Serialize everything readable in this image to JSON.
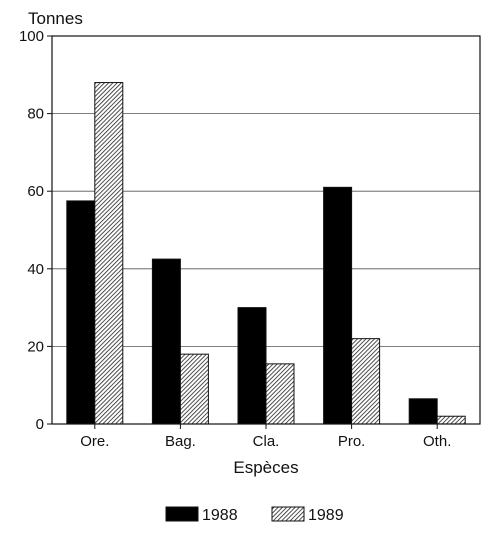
{
  "chart_data": {
    "type": "bar",
    "ylabel": "Tonnes",
    "xlabel": "Espèces",
    "categories": [
      "Ore.",
      "Bag.",
      "Cla.",
      "Pro.",
      "Oth."
    ],
    "series": [
      {
        "name": "1988",
        "values": [
          57.5,
          42.5,
          30,
          61,
          6.5
        ],
        "color": "#000000",
        "pattern": "solid"
      },
      {
        "name": "1989",
        "values": [
          88,
          18,
          15.5,
          22,
          2
        ],
        "color": "#888888",
        "pattern": "hatched"
      }
    ],
    "ylim": [
      0,
      100
    ],
    "yticks": [
      "0",
      "20",
      "40",
      "60",
      "80",
      "100"
    ],
    "grid": true,
    "legend_position": "bottom"
  }
}
